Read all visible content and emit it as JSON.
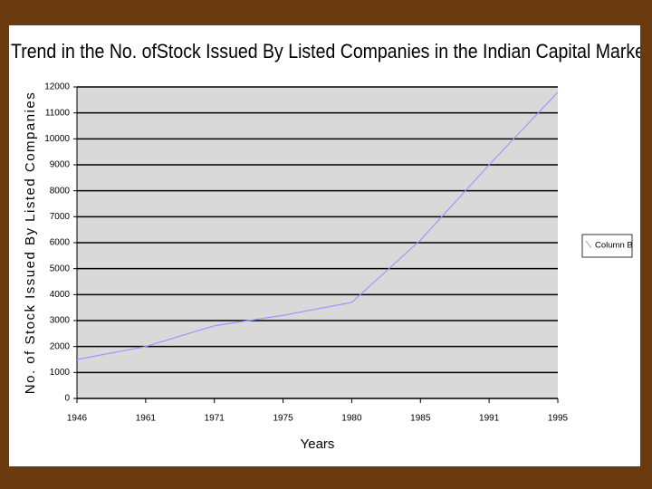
{
  "chart_data": {
    "type": "line",
    "title": "Trend in the No. ofStock Issued By Listed Companies in the Indian Capital Marke",
    "x_label": "Years",
    "y_label": "No. of Stock Issued By Listed Companies",
    "categories": [
      "1946",
      "1961",
      "1971",
      "1975",
      "1980",
      "1985",
      "1991",
      "1995"
    ],
    "series": [
      {
        "name": "Column B",
        "color": "#9999ff",
        "values": [
          1500,
          2000,
          2800,
          3200,
          3700,
          6100,
          9000,
          11800
        ]
      }
    ],
    "ylim": [
      0,
      12000
    ],
    "yticks": [
      0,
      1000,
      2000,
      3000,
      4000,
      5000,
      6000,
      7000,
      8000,
      9000,
      10000,
      11000,
      12000
    ],
    "grid": true,
    "legend": "right"
  }
}
